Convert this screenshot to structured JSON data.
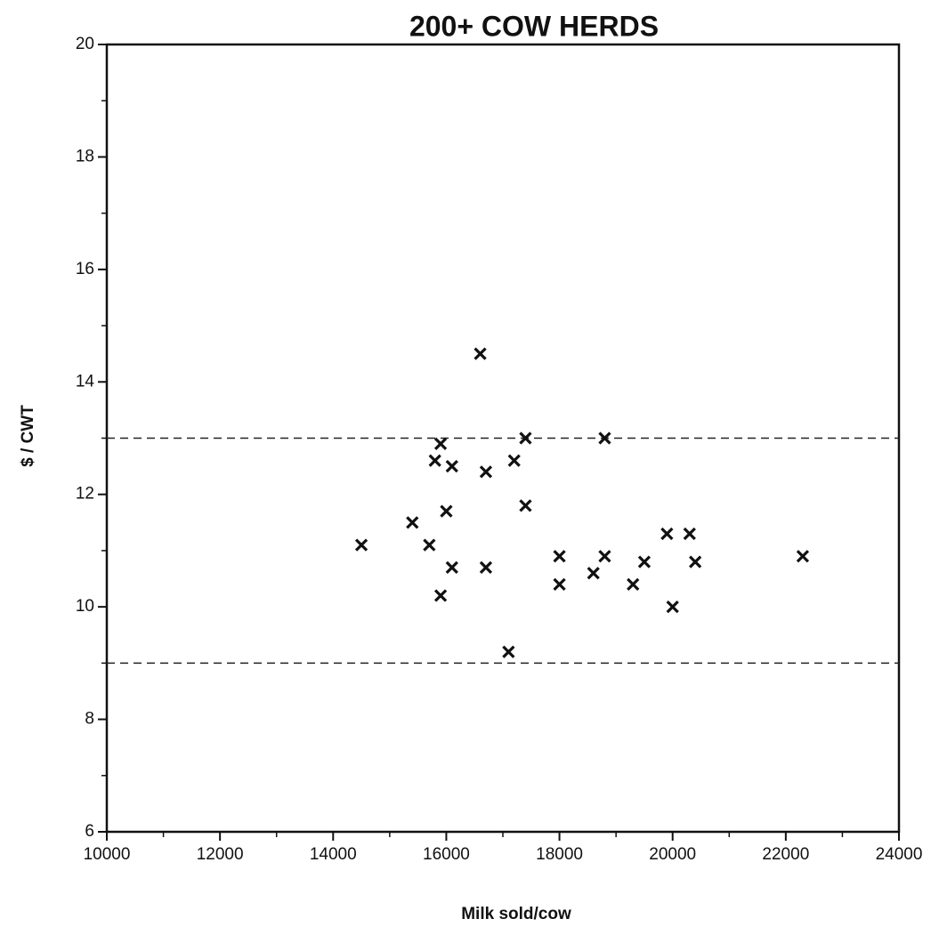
{
  "chart_data": {
    "type": "scatter",
    "title": "200+ COW HERDS",
    "xlabel": "Milk sold/cow",
    "ylabel": "$ / CWT",
    "x": [
      14500,
      15400,
      15700,
      15900,
      16100,
      15800,
      16000,
      16100,
      15900,
      16700,
      16700,
      16600,
      17100,
      17200,
      17400,
      17400,
      18000,
      18000,
      18600,
      18800,
      18800,
      19300,
      19500,
      19900,
      20000,
      20300,
      20400,
      22300
    ],
    "values": [
      11.1,
      11.5,
      11.1,
      12.9,
      12.5,
      12.6,
      11.7,
      10.7,
      10.2,
      12.4,
      10.7,
      14.5,
      9.2,
      12.6,
      11.8,
      13.0,
      10.4,
      10.9,
      10.6,
      10.9,
      13.0,
      10.4,
      10.8,
      11.3,
      10.0,
      11.3,
      10.8,
      10.9
    ],
    "color": "#111111",
    "reference_lines": [
      13,
      9
    ],
    "xlim": [
      10000,
      24000
    ],
    "xticks": [
      10000,
      12000,
      14000,
      16000,
      18000,
      20000,
      22000,
      24000
    ],
    "ylim": [
      6,
      20
    ],
    "yticks": [
      6,
      8,
      10,
      12,
      14,
      16,
      18,
      20
    ]
  }
}
